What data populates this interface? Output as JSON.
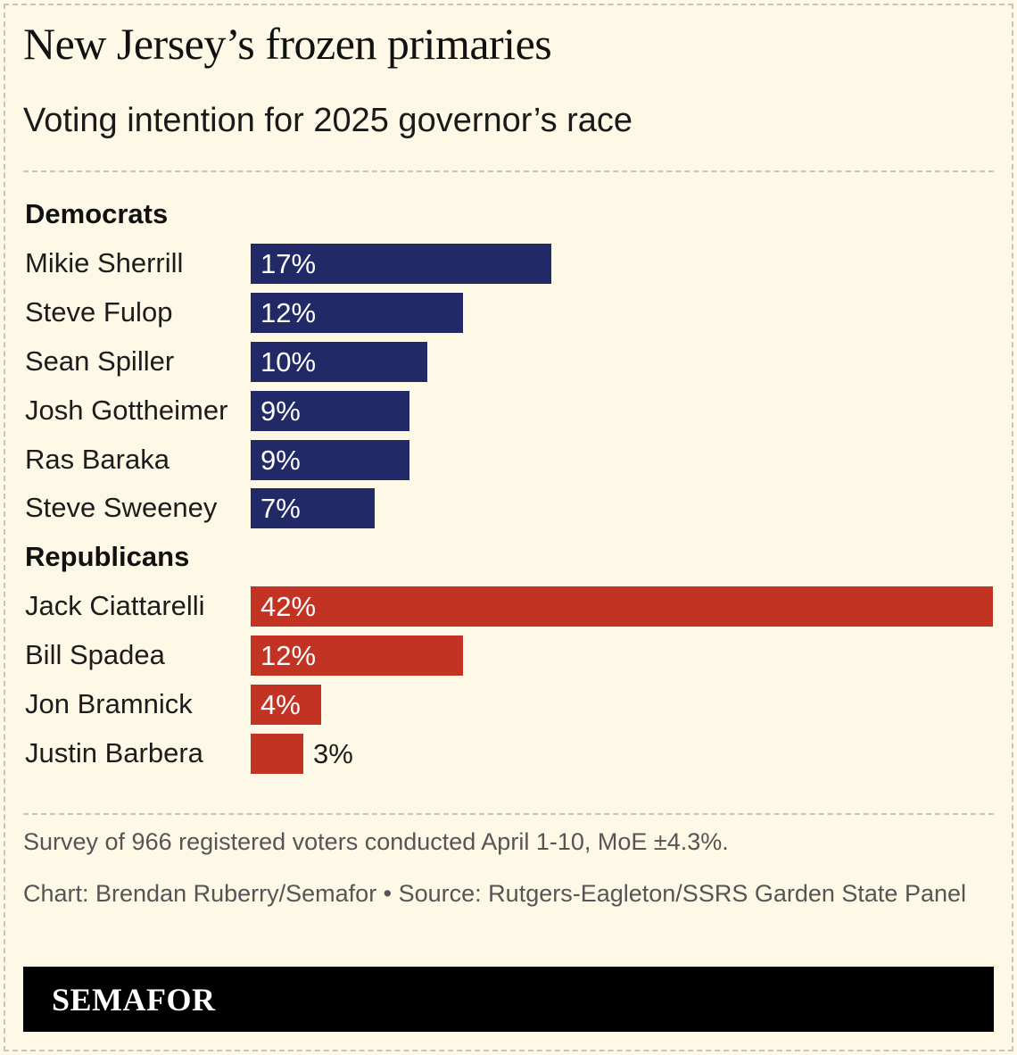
{
  "header": {
    "title": "New Jersey’s frozen primaries",
    "subtitle": "Voting intention for 2025 governor’s race"
  },
  "chart_data": {
    "type": "bar",
    "orientation": "horizontal",
    "value_suffix": "%",
    "groups": [
      {
        "label": "Democrats",
        "color": "#212a67",
        "categories": [
          "Mikie Sherrill",
          "Steve Fulop",
          "Sean Spiller",
          "Josh Gottheimer",
          "Ras Baraka",
          "Steve Sweeney"
        ],
        "values": [
          17,
          12,
          10,
          9,
          9,
          7
        ]
      },
      {
        "label": "Republicans",
        "color": "#c33324",
        "categories": [
          "Jack Ciattarelli",
          "Bill Spadea",
          "Jon Bramnick",
          "Justin Barbera"
        ],
        "values": [
          42,
          12,
          4,
          3
        ]
      }
    ],
    "xlim": [
      0,
      42
    ],
    "grid": false,
    "legend": "none"
  },
  "footer": {
    "note": "Survey of 966 registered voters conducted April 1-10, MoE ±4.3%.",
    "credit": "Chart: Brendan Ruberry/Semafor • Source: Rutgers-Eagleton/SSRS Garden State Panel",
    "logo": "SEMAFOR"
  }
}
